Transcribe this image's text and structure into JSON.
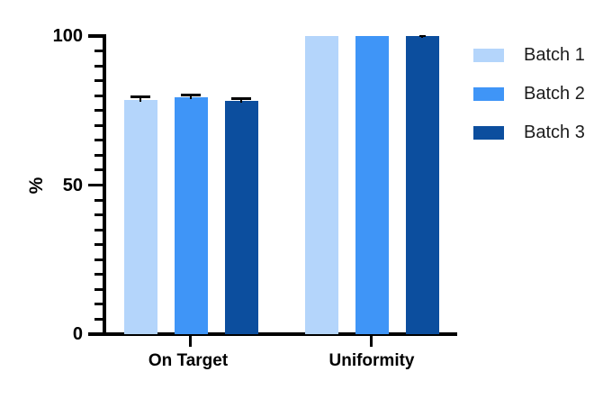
{
  "chart_data": {
    "type": "bar",
    "title": "",
    "ylabel": "%",
    "categories": [
      "On Target",
      "Uniformity"
    ],
    "series": [
      {
        "name": "Batch 1",
        "color": "#B4D5FB",
        "values": [
          78.6,
          100
        ],
        "errors": [
          1.0,
          0
        ]
      },
      {
        "name": "Batch 2",
        "color": "#3F95F7",
        "values": [
          79.4,
          100
        ],
        "errors": [
          0.8,
          0
        ]
      },
      {
        "name": "Batch 3",
        "color": "#0C4E9E",
        "values": [
          78.3,
          100
        ],
        "errors": [
          0.8,
          0.15
        ]
      }
    ],
    "ylim": [
      0,
      100
    ],
    "yticks": [
      0,
      50,
      100
    ],
    "minor_tick_step": 5,
    "grid": false,
    "legend_position": "right",
    "error_bar_color": "#000000",
    "axis_color": "#000000"
  }
}
